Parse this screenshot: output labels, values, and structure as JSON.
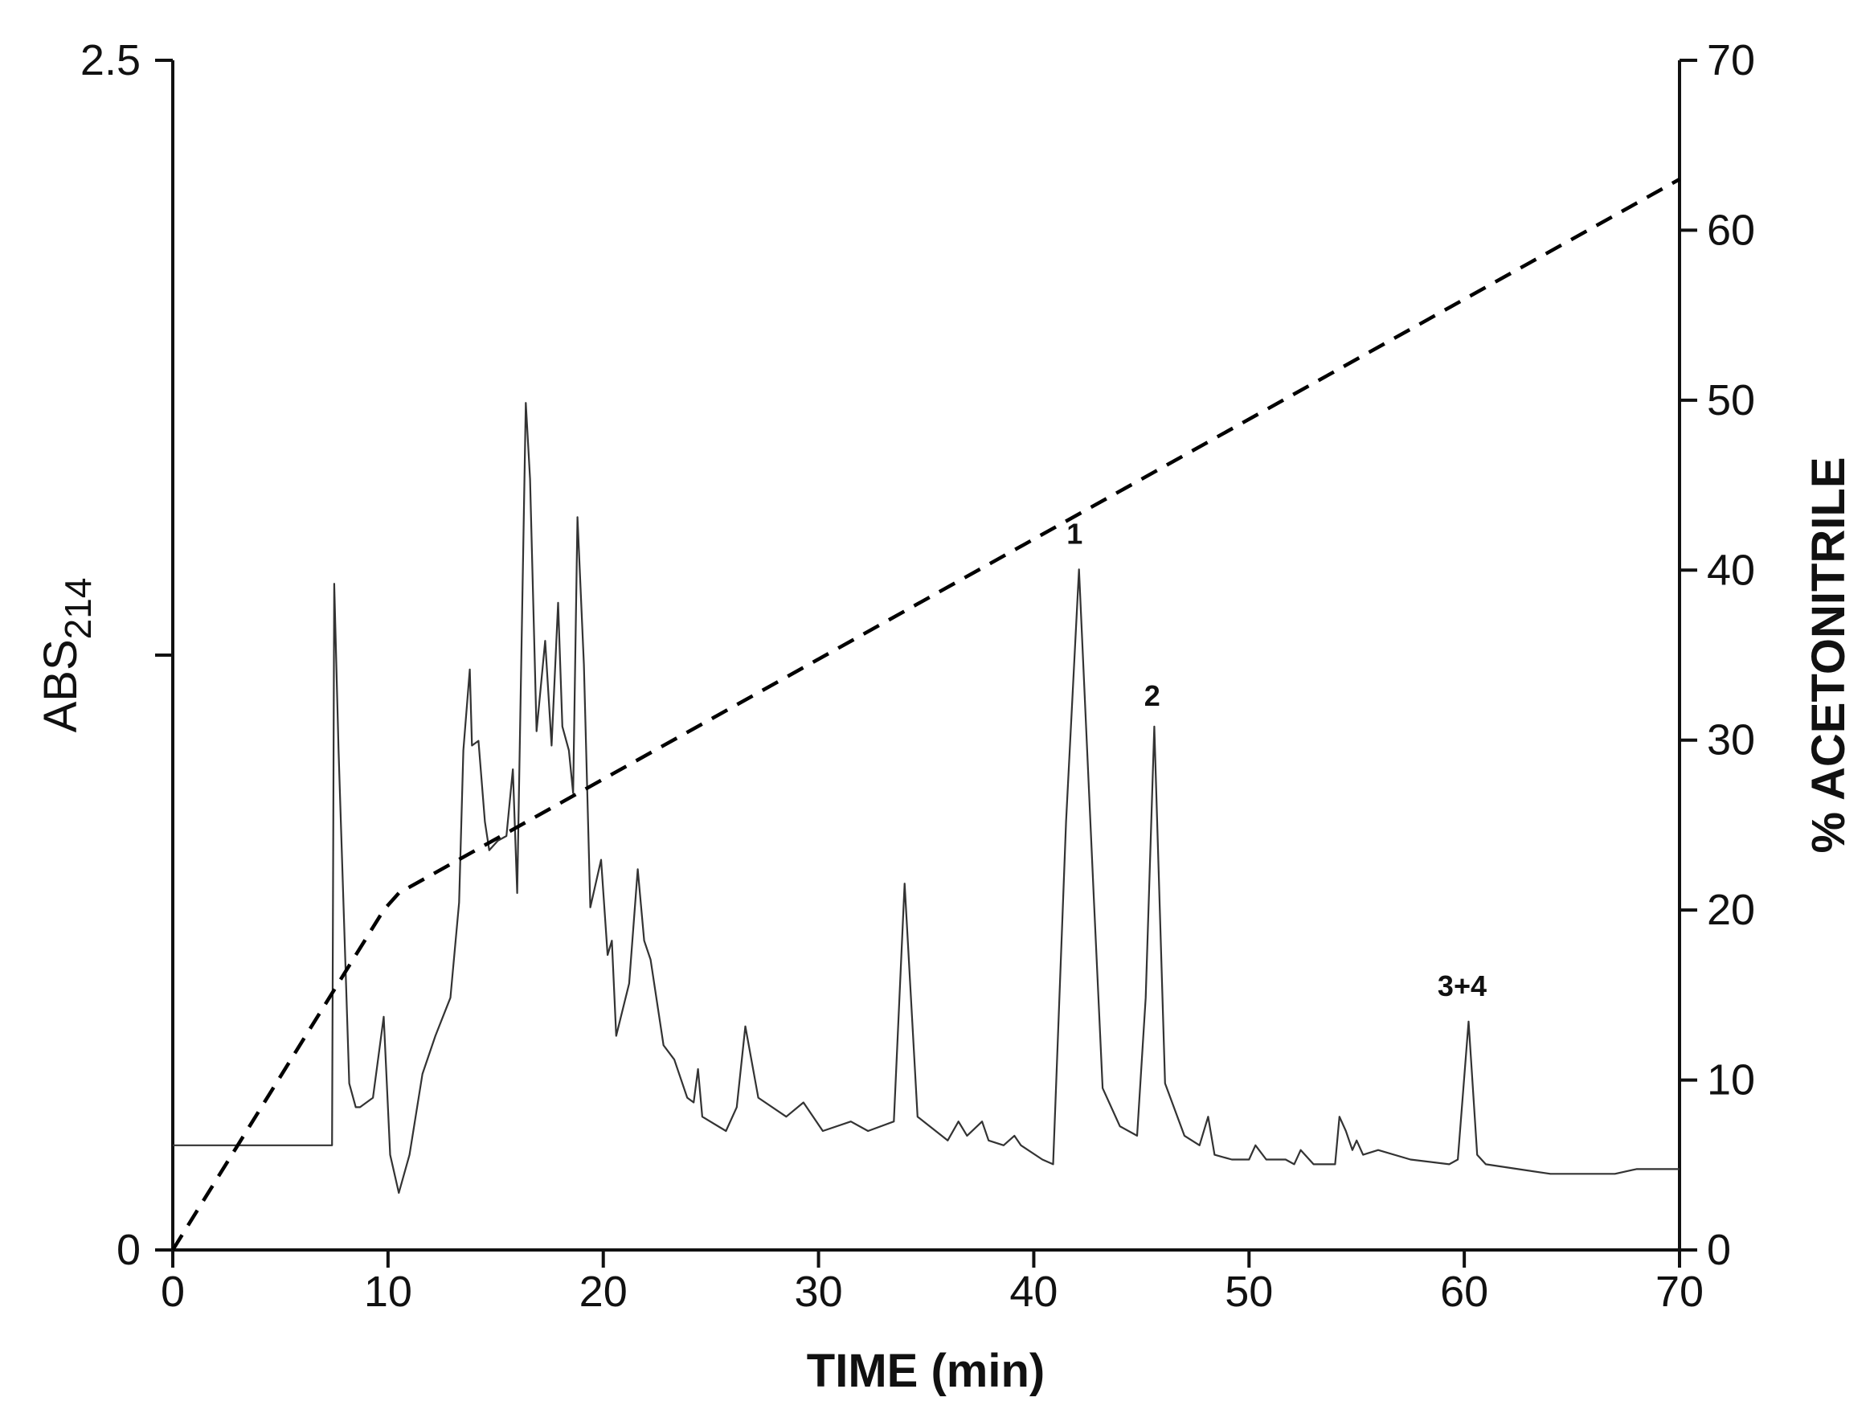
{
  "chart_data": {
    "type": "line",
    "title": "",
    "xlabel": "TIME (min)",
    "ylabel_left": "ABS",
    "ylabel_left_subscript": "214",
    "ylabel_right": "% ACETONITRILE",
    "xlim": [
      0,
      70
    ],
    "ylim_left": [
      0,
      2.5
    ],
    "ylim_right": [
      0,
      70
    ],
    "x_ticks": [
      0,
      10,
      20,
      30,
      40,
      50,
      60,
      70
    ],
    "y_left_ticks": [
      0,
      1.25,
      2.5
    ],
    "y_left_tick_labels": [
      "0",
      "",
      "2.5"
    ],
    "y_right_ticks": [
      0,
      10,
      20,
      30,
      40,
      50,
      60,
      70
    ],
    "grid": false,
    "series": [
      {
        "style": "solid",
        "axis": "left",
        "x": [
          0,
          7.4,
          7.5,
          7.7,
          8.2,
          8.5,
          8.7,
          9.3,
          9.8,
          10.1,
          10.5,
          11.0,
          11.6,
          12.2,
          12.9,
          13.3,
          13.5,
          13.8,
          13.9,
          14.2,
          14.5,
          14.7,
          15.1,
          15.5,
          15.8,
          16.0,
          16.4,
          16.6,
          16.9,
          17.3,
          17.6,
          17.9,
          18.1,
          18.4,
          18.6,
          18.8,
          19.1,
          19.4,
          19.9,
          20.2,
          20.4,
          20.6,
          21.2,
          21.6,
          21.9,
          22.2,
          22.8,
          23.3,
          23.9,
          24.2,
          24.4,
          24.6,
          25.7,
          26.2,
          26.6,
          27.2,
          28.5,
          29.3,
          30.2,
          31.5,
          32.3,
          33.5,
          34.0,
          34.6,
          36.0,
          36.5,
          36.9,
          37.6,
          37.9,
          38.6,
          39.1,
          39.4,
          40.4,
          40.9,
          41.5,
          42.1,
          42.8,
          43.2,
          44.0,
          44.8,
          45.2,
          45.6,
          46.1,
          47.0,
          47.7,
          48.1,
          48.4,
          49.2,
          50.0,
          50.3,
          50.8,
          51.7,
          52.1,
          52.4,
          53.0,
          54.0,
          54.2,
          54.5,
          54.8,
          55.0,
          55.3,
          56.0,
          57.5,
          59.3,
          59.7,
          60.2,
          60.6,
          61.0,
          62.5,
          64.0,
          66.0,
          66.2,
          67.0,
          68.0,
          70.0
        ],
        "y": [
          0.22,
          0.22,
          1.4,
          1.05,
          0.35,
          0.3,
          0.3,
          0.32,
          0.49,
          0.2,
          0.12,
          0.2,
          0.37,
          0.45,
          0.53,
          0.73,
          1.05,
          1.22,
          1.06,
          1.07,
          0.9,
          0.84,
          0.86,
          0.87,
          1.01,
          0.75,
          1.78,
          1.62,
          1.09,
          1.28,
          1.06,
          1.36,
          1.1,
          1.05,
          0.96,
          1.54,
          1.23,
          0.72,
          0.82,
          0.62,
          0.65,
          0.45,
          0.56,
          0.8,
          0.65,
          0.61,
          0.43,
          0.4,
          0.32,
          0.31,
          0.38,
          0.28,
          0.25,
          0.3,
          0.47,
          0.32,
          0.28,
          0.31,
          0.25,
          0.27,
          0.25,
          0.27,
          0.77,
          0.28,
          0.23,
          0.27,
          0.24,
          0.27,
          0.23,
          0.22,
          0.24,
          0.22,
          0.19,
          0.18,
          0.9,
          1.43,
          0.73,
          0.34,
          0.26,
          0.24,
          0.53,
          1.1,
          0.35,
          0.24,
          0.22,
          0.28,
          0.2,
          0.19,
          0.19,
          0.22,
          0.19,
          0.19,
          0.18,
          0.21,
          0.18,
          0.18,
          0.28,
          0.25,
          0.21,
          0.23,
          0.2,
          0.21,
          0.19,
          0.18,
          0.19,
          0.48,
          0.2,
          0.18,
          0.17,
          0.16,
          0.16,
          0.16,
          0.16,
          0.17,
          0.17
        ]
      },
      {
        "style": "dashed",
        "axis": "right",
        "x": [
          0,
          9.8,
          10.5,
          70
        ],
        "y": [
          0,
          20,
          21,
          63
        ]
      }
    ],
    "annotations": [
      {
        "text": "1",
        "x": 41.9,
        "y": 1.45
      },
      {
        "text": "2",
        "x": 45.5,
        "y": 1.11
      },
      {
        "text": "3+4",
        "x": 59.9,
        "y": 0.5
      }
    ]
  }
}
